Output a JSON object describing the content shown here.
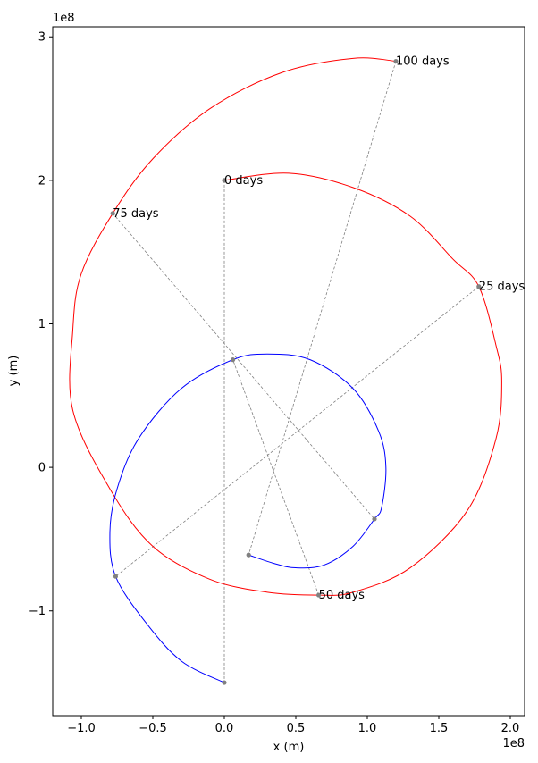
{
  "chart_data": {
    "type": "line",
    "xlabel": "x (m)",
    "ylabel": "y (m)",
    "x_offset_label": "1e8",
    "y_offset_label": "1e8",
    "xlim": [
      -120000000.0,
      210000000.0
    ],
    "ylim": [
      -173000000.0,
      307000000.0
    ],
    "xticks": [
      -100000000.0,
      -50000000.0,
      0.0,
      50000000.0,
      100000000.0,
      150000000.0,
      200000000.0
    ],
    "xtick_labels": [
      "−1.0",
      "−0.5",
      "0.0",
      "0.5",
      "1.0",
      "1.5",
      "2.0"
    ],
    "yticks": [
      -100000000.0,
      0,
      100000000.0,
      200000000.0,
      300000000.0
    ],
    "ytick_labels": [
      "−1",
      "0",
      "1",
      "2",
      "3"
    ],
    "grid": false,
    "series": [
      {
        "color": "#ff0000",
        "points": [
          [
            0.0,
            200000000.0
          ],
          [
            45000000.0,
            205000000.0
          ],
          [
            90000000.0,
            195000000.0
          ],
          [
            130000000.0,
            175000000.0
          ],
          [
            160000000.0,
            145000000.0
          ],
          [
            178000000.0,
            126000000.0
          ],
          [
            190000000.0,
            85000000.0
          ],
          [
            194000000.0,
            60000000.0
          ],
          [
            190000000.0,
            20000000.0
          ],
          [
            170000000.0,
            -30000000.0
          ],
          [
            130000000.0,
            -70000000.0
          ],
          [
            90000000.0,
            -87000000.0
          ],
          [
            66000000.0,
            -89000000.0
          ],
          [
            30000000.0,
            -87000000.0
          ],
          [
            -10000000.0,
            -78000000.0
          ],
          [
            -50000000.0,
            -55000000.0
          ],
          [
            -80000000.0,
            -15000000.0
          ],
          [
            -106000000.0,
            40000000.0
          ],
          [
            -106000000.0,
            95000000.0
          ],
          [
            -100000000.0,
            135000000.0
          ],
          [
            -78000000.0,
            177000000.0
          ],
          [
            -50000000.0,
            215000000.0
          ],
          [
            -10000000.0,
            250000000.0
          ],
          [
            40000000.0,
            275000000.0
          ],
          [
            90000000.0,
            285000000.0
          ],
          [
            120000000.0,
            283000000.0
          ]
        ]
      },
      {
        "color": "#0000ff",
        "points": [
          [
            0.0,
            -150000000.0
          ],
          [
            -30000000.0,
            -135000000.0
          ],
          [
            -55000000.0,
            -108000000.0
          ],
          [
            -76000000.0,
            -76000000.0
          ],
          [
            -80000000.0,
            -45000000.0
          ],
          [
            -75000000.0,
            -15000000.0
          ],
          [
            -60000000.0,
            20000000.0
          ],
          [
            -30000000.0,
            55000000.0
          ],
          [
            6000000.0,
            75000000.0
          ],
          [
            30000000.0,
            79000000.0
          ],
          [
            60000000.0,
            75000000.0
          ],
          [
            90000000.0,
            55000000.0
          ],
          [
            108000000.0,
            25000000.0
          ],
          [
            113000000.0,
            0.0
          ],
          [
            110000000.0,
            -28000000.0
          ],
          [
            105000000.0,
            -36000000.0
          ],
          [
            90000000.0,
            -55000000.0
          ],
          [
            70000000.0,
            -68000000.0
          ],
          [
            50000000.0,
            -70000000.0
          ],
          [
            35000000.0,
            -67000000.0
          ],
          [
            17000000.0,
            -61000000.0
          ]
        ]
      }
    ],
    "markers": [
      {
        "label": "0 days",
        "red": [
          0.0,
          200000000.0
        ],
        "blue": [
          0.0,
          -150000000.0
        ]
      },
      {
        "label": "25 days",
        "red": [
          178000000.0,
          126000000.0
        ],
        "blue": [
          -76000000.0,
          -76000000.0
        ]
      },
      {
        "label": "50 days",
        "red": [
          66000000.0,
          -89000000.0
        ],
        "blue": [
          6000000.0,
          75000000.0
        ]
      },
      {
        "label": "75 days",
        "red": [
          -78000000.0,
          177000000.0
        ],
        "blue": [
          105000000.0,
          -36000000.0
        ]
      },
      {
        "label": "100 days",
        "red": [
          120000000.0,
          283000000.0
        ],
        "blue": [
          17000000.0,
          -61000000.0
        ]
      }
    ],
    "marker_color": "#808080"
  }
}
